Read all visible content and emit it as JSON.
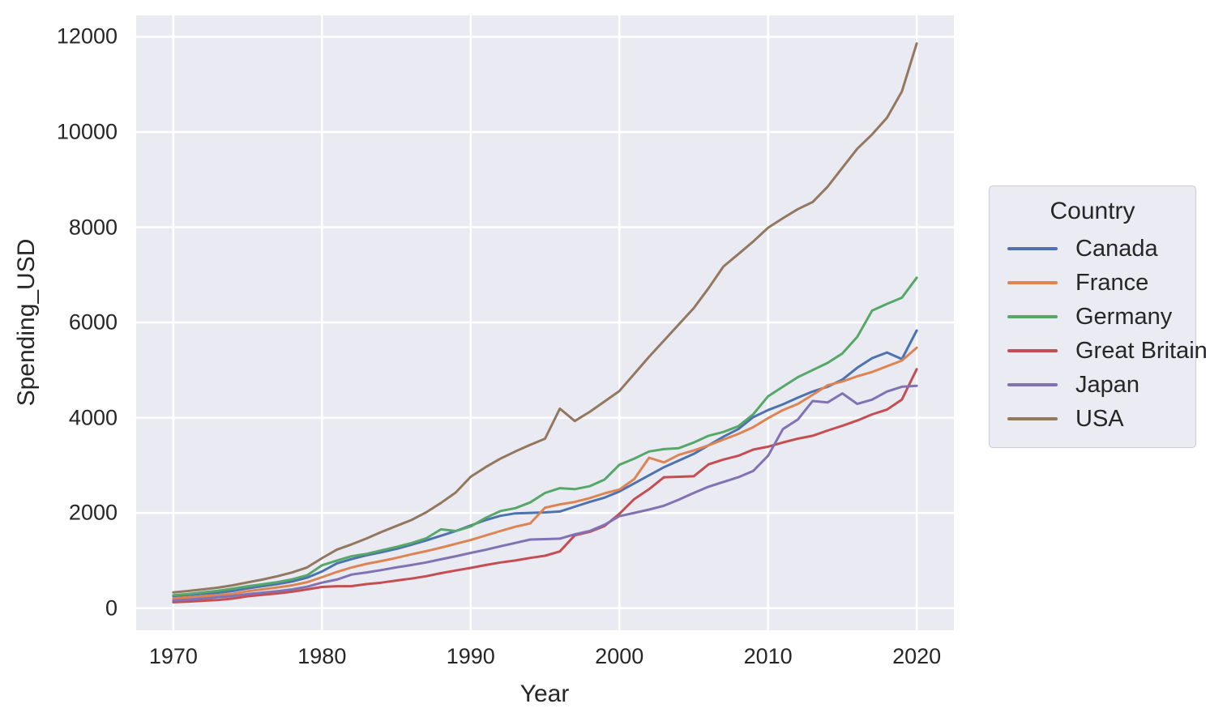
{
  "accent_colors": {
    "axes_background": "#eaeaf2",
    "grid": "#ffffff",
    "text": "#262626"
  },
  "chart_data": {
    "type": "line",
    "title": "",
    "xlabel": "Year",
    "ylabel": "Spending_USD",
    "grid": true,
    "legend_title": "Country",
    "legend_position": "right",
    "x_ticks": [
      1970,
      1980,
      1990,
      2000,
      2010,
      2020
    ],
    "y_ticks": [
      0,
      2000,
      4000,
      6000,
      8000,
      10000,
      12000
    ],
    "xlim": [
      1967.5,
      2022.5
    ],
    "ylim": [
      -465,
      12450
    ],
    "x": [
      1970,
      1971,
      1972,
      1973,
      1974,
      1975,
      1976,
      1977,
      1978,
      1979,
      1980,
      1981,
      1982,
      1983,
      1984,
      1985,
      1986,
      1987,
      1988,
      1989,
      1990,
      1991,
      1992,
      1993,
      1994,
      1995,
      1996,
      1997,
      1998,
      1999,
      2000,
      2001,
      2002,
      2003,
      2004,
      2005,
      2006,
      2007,
      2008,
      2009,
      2010,
      2011,
      2012,
      2013,
      2014,
      2015,
      2016,
      2017,
      2018,
      2019,
      2020
    ],
    "series": [
      {
        "name": "Canada",
        "color": "#4c72b0",
        "values": [
          253,
          276,
          300,
          325,
          360,
          415,
          460,
          505,
          560,
          640,
          770,
          940,
          1030,
          1110,
          1175,
          1245,
          1330,
          1420,
          1520,
          1620,
          1735,
          1850,
          1940,
          1990,
          2000,
          2010,
          2030,
          2130,
          2230,
          2320,
          2450,
          2620,
          2790,
          2960,
          3100,
          3240,
          3420,
          3600,
          3760,
          4010,
          4160,
          4280,
          4420,
          4550,
          4650,
          4800,
          5050,
          5250,
          5370,
          5230,
          5830
        ]
      },
      {
        "name": "France",
        "color": "#dd8452",
        "values": [
          205,
          225,
          248,
          275,
          300,
          355,
          395,
          435,
          480,
          545,
          650,
          760,
          855,
          930,
          990,
          1055,
          1130,
          1195,
          1270,
          1350,
          1430,
          1525,
          1620,
          1710,
          1780,
          2110,
          2180,
          2230,
          2310,
          2410,
          2490,
          2710,
          3160,
          3060,
          3220,
          3310,
          3420,
          3540,
          3660,
          3800,
          3990,
          4160,
          4290,
          4480,
          4680,
          4760,
          4870,
          4960,
          5080,
          5200,
          5470
        ]
      },
      {
        "name": "Germany",
        "color": "#55a868",
        "values": [
          270,
          295,
          330,
          365,
          410,
          460,
          500,
          545,
          605,
          690,
          900,
          1000,
          1090,
          1140,
          1215,
          1285,
          1365,
          1465,
          1655,
          1620,
          1715,
          1895,
          2040,
          2100,
          2220,
          2420,
          2520,
          2500,
          2560,
          2700,
          3010,
          3140,
          3290,
          3340,
          3360,
          3480,
          3620,
          3700,
          3820,
          4070,
          4450,
          4650,
          4850,
          5000,
          5150,
          5350,
          5700,
          6250,
          6390,
          6520,
          6940
        ]
      },
      {
        "name": "Great Britain",
        "color": "#c44e52",
        "values": [
          124,
          138,
          155,
          172,
          200,
          250,
          280,
          310,
          345,
          395,
          445,
          460,
          462,
          505,
          535,
          580,
          620,
          670,
          735,
          790,
          845,
          905,
          960,
          1000,
          1055,
          1100,
          1190,
          1530,
          1600,
          1725,
          1980,
          2290,
          2500,
          2750,
          2760,
          2770,
          3020,
          3120,
          3200,
          3330,
          3390,
          3480,
          3560,
          3620,
          3730,
          3830,
          3940,
          4070,
          4170,
          4380,
          5020
        ]
      },
      {
        "name": "Japan",
        "color": "#8172b3",
        "values": [
          160,
          180,
          200,
          230,
          255,
          295,
          325,
          355,
          395,
          450,
          535,
          600,
          705,
          750,
          800,
          855,
          905,
          960,
          1025,
          1090,
          1160,
          1225,
          1300,
          1370,
          1440,
          1450,
          1460,
          1550,
          1620,
          1750,
          1930,
          2000,
          2070,
          2150,
          2280,
          2420,
          2550,
          2650,
          2750,
          2880,
          3200,
          3760,
          3960,
          4350,
          4320,
          4510,
          4290,
          4380,
          4550,
          4650,
          4670
        ]
      },
      {
        "name": "USA",
        "color": "#937860",
        "values": [
          330,
          360,
          395,
          430,
          480,
          540,
          600,
          670,
          750,
          855,
          1050,
          1230,
          1340,
          1465,
          1600,
          1725,
          1850,
          2010,
          2210,
          2430,
          2760,
          2960,
          3140,
          3290,
          3430,
          3560,
          4190,
          3930,
          4120,
          4340,
          4560,
          4920,
          5280,
          5620,
          5960,
          6300,
          6720,
          7175,
          7435,
          7700,
          7990,
          8190,
          8380,
          8530,
          8850,
          9250,
          9650,
          9950,
          10300,
          10850,
          11860
        ]
      }
    ]
  }
}
